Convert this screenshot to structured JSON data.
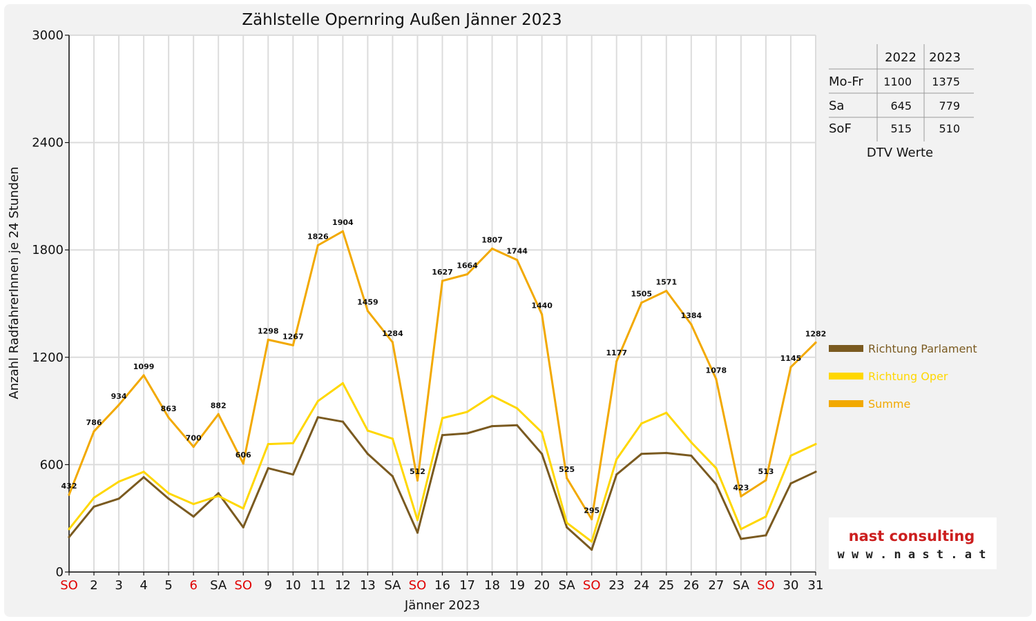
{
  "chart_data": {
    "type": "line",
    "title": "Zählstelle Opernring Außen Jänner 2023",
    "xlabel": "Jänner 2023",
    "ylabel": "Anzahl RadfahrerInnen je 24 Stunden",
    "ylim": [
      0,
      3000
    ],
    "yticks": [
      0,
      600,
      1200,
      1800,
      2400,
      3000
    ],
    "grid": true,
    "legend_position": "right",
    "categories": [
      "SO",
      "2",
      "3",
      "4",
      "5",
      "6",
      "SA",
      "SO",
      "9",
      "10",
      "11",
      "12",
      "13",
      "SA",
      "SO",
      "16",
      "17",
      "18",
      "19",
      "20",
      "SA",
      "SO",
      "23",
      "24",
      "25",
      "26",
      "27",
      "SA",
      "SO",
      "30",
      "31"
    ],
    "red_categories": [
      0,
      5,
      7,
      14,
      21,
      28
    ],
    "series": [
      {
        "name": "Richtung Parlament",
        "color": "#7a5a20",
        "values": [
          195,
          365,
          410,
          530,
          410,
          310,
          440,
          250,
          580,
          545,
          865,
          840,
          660,
          535,
          220,
          765,
          775,
          815,
          820,
          660,
          250,
          125,
          545,
          660,
          665,
          650,
          490,
          185,
          205,
          495,
          560
        ]
      },
      {
        "name": "Richtung Oper",
        "color": "#ffd700",
        "values": [
          240,
          415,
          505,
          560,
          440,
          380,
          425,
          355,
          715,
          720,
          955,
          1055,
          790,
          745,
          290,
          860,
          895,
          985,
          915,
          780,
          275,
          170,
          630,
          830,
          890,
          725,
          580,
          240,
          310,
          650,
          715
        ]
      },
      {
        "name": "Summe",
        "color": "#f2a900",
        "values": [
          432,
          786,
          934,
          1099,
          863,
          700,
          882,
          606,
          1298,
          1267,
          1826,
          1904,
          1459,
          1284,
          512,
          1627,
          1664,
          1807,
          1744,
          1440,
          525,
          295,
          1177,
          1505,
          1571,
          1384,
          1078,
          423,
          513,
          1145,
          1282
        ]
      }
    ],
    "data_labels": [
      "432",
      "786",
      "934",
      "1099",
      "863",
      "700",
      "882",
      "606",
      "1298",
      "1267",
      "1826",
      "1904",
      "1459",
      "1284",
      "512",
      "1627",
      "1664",
      "1807",
      "1744",
      "1440",
      "525",
      "295",
      "1177",
      "1505",
      "1571",
      "1384",
      "1078",
      "423",
      "513",
      "1145",
      "1282"
    ]
  },
  "dtv": {
    "header": [
      "",
      "2022",
      "2023"
    ],
    "rows": [
      [
        "Mo-Fr",
        "1100",
        "1375"
      ],
      [
        "Sa",
        "645",
        "779"
      ],
      [
        "SoF",
        "515",
        "510"
      ]
    ],
    "caption": "DTV Werte"
  },
  "logo": {
    "name": "nast consulting",
    "url": "w w w . n a s t . a t",
    "color": "#cc1f1f"
  }
}
